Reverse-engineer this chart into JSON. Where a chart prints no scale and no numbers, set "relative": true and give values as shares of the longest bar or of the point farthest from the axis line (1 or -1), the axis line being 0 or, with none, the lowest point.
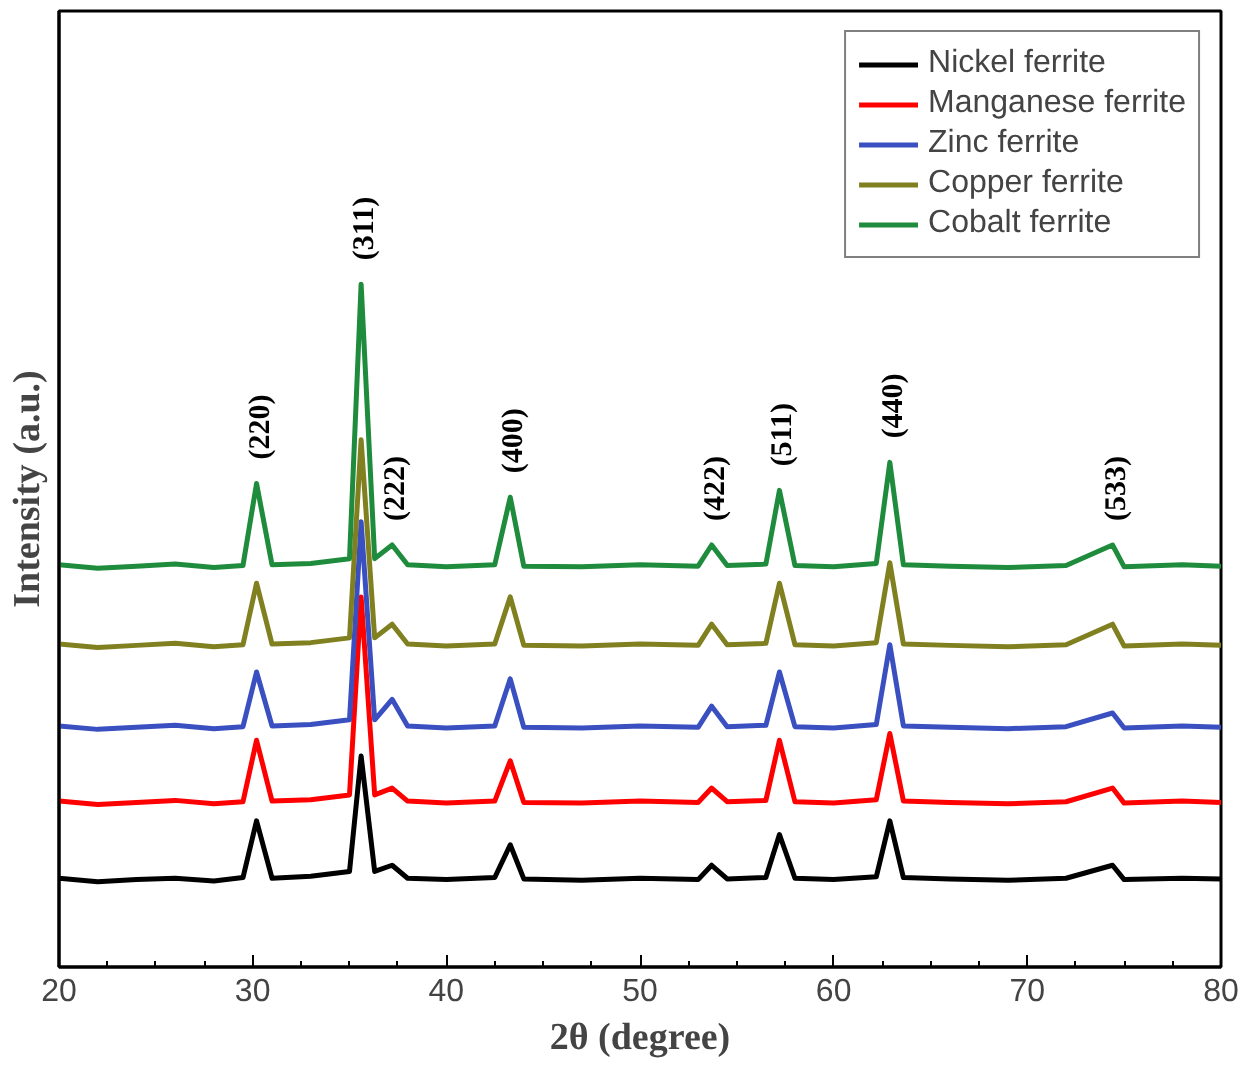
{
  "chart_data": {
    "type": "line",
    "relative": true,
    "xlabel": "2θ (degree)",
    "ylabel": "Intensity (a.u.)",
    "xlim": [
      20,
      80
    ],
    "xticks": [
      20,
      30,
      40,
      50,
      60,
      70,
      80
    ],
    "legend": "top right",
    "grid": false,
    "x": [
      20,
      22,
      24,
      26,
      28,
      29.5,
      30.2,
      31,
      33,
      35,
      35.6,
      36.3,
      37.2,
      38,
      40,
      42.5,
      43.3,
      44,
      47,
      50,
      53,
      53.7,
      54.5,
      56.5,
      57.2,
      58,
      60,
      62.2,
      62.9,
      63.6,
      66,
      69,
      72,
      74.4,
      75,
      78,
      80
    ],
    "series": [
      {
        "name": "Nickel ferrite",
        "color": "#000000",
        "values": [
          0.13,
          0.125,
          0.128,
          0.13,
          0.126,
          0.131,
          0.214,
          0.13,
          0.133,
          0.14,
          0.309,
          0.14,
          0.149,
          0.13,
          0.128,
          0.131,
          0.179,
          0.129,
          0.127,
          0.13,
          0.128,
          0.149,
          0.129,
          0.131,
          0.194,
          0.13,
          0.128,
          0.132,
          0.214,
          0.131,
          0.129,
          0.127,
          0.13,
          0.149,
          0.128,
          0.13,
          0.129
        ]
      },
      {
        "name": "Manganese ferrite",
        "color": "#ff0000",
        "values": [
          0.243,
          0.238,
          0.241,
          0.244,
          0.239,
          0.242,
          0.332,
          0.243,
          0.245,
          0.252,
          0.542,
          0.252,
          0.262,
          0.243,
          0.24,
          0.243,
          0.302,
          0.241,
          0.24,
          0.243,
          0.241,
          0.262,
          0.242,
          0.244,
          0.332,
          0.242,
          0.24,
          0.245,
          0.342,
          0.243,
          0.241,
          0.239,
          0.242,
          0.262,
          0.24,
          0.243,
          0.241
        ]
      },
      {
        "name": "Zinc ferrite",
        "color": "#3a4fc0",
        "values": [
          0.353,
          0.348,
          0.351,
          0.354,
          0.349,
          0.352,
          0.432,
          0.353,
          0.355,
          0.362,
          0.652,
          0.362,
          0.392,
          0.353,
          0.35,
          0.353,
          0.422,
          0.351,
          0.35,
          0.353,
          0.351,
          0.382,
          0.352,
          0.354,
          0.432,
          0.352,
          0.35,
          0.355,
          0.472,
          0.353,
          0.351,
          0.349,
          0.352,
          0.372,
          0.35,
          0.353,
          0.351
        ]
      },
      {
        "name": "Copper ferrite",
        "color": "#808020",
        "values": [
          0.473,
          0.468,
          0.471,
          0.474,
          0.469,
          0.472,
          0.562,
          0.473,
          0.475,
          0.482,
          0.772,
          0.482,
          0.502,
          0.473,
          0.47,
          0.473,
          0.542,
          0.471,
          0.47,
          0.473,
          0.471,
          0.502,
          0.472,
          0.474,
          0.562,
          0.472,
          0.47,
          0.475,
          0.592,
          0.473,
          0.471,
          0.469,
          0.472,
          0.502,
          0.47,
          0.473,
          0.471
        ]
      },
      {
        "name": "Cobalt ferrite",
        "color": "#1e8c3c",
        "values": [
          0.589,
          0.584,
          0.587,
          0.59,
          0.585,
          0.588,
          0.708,
          0.589,
          0.591,
          0.598,
          1.0,
          0.598,
          0.618,
          0.589,
          0.586,
          0.589,
          0.688,
          0.587,
          0.586,
          0.589,
          0.587,
          0.618,
          0.588,
          0.59,
          0.698,
          0.588,
          0.586,
          0.591,
          0.739,
          0.589,
          0.587,
          0.585,
          0.588,
          0.618,
          0.586,
          0.589,
          0.587
        ]
      }
    ],
    "annotations": [
      {
        "text": "(220)",
        "x": 30.2,
        "y": 0.708
      },
      {
        "text": "(311)",
        "x": 35.6,
        "y": 1.0
      },
      {
        "text": "(222)",
        "x": 37.2,
        "y": 0.618
      },
      {
        "text": "(400)",
        "x": 43.3,
        "y": 0.688
      },
      {
        "text": "(422)",
        "x": 53.7,
        "y": 0.618
      },
      {
        "text": "(511)",
        "x": 57.2,
        "y": 0.698
      },
      {
        "text": "(440)",
        "x": 62.9,
        "y": 0.739
      },
      {
        "text": "(533)",
        "x": 74.4,
        "y": 0.618
      }
    ]
  }
}
